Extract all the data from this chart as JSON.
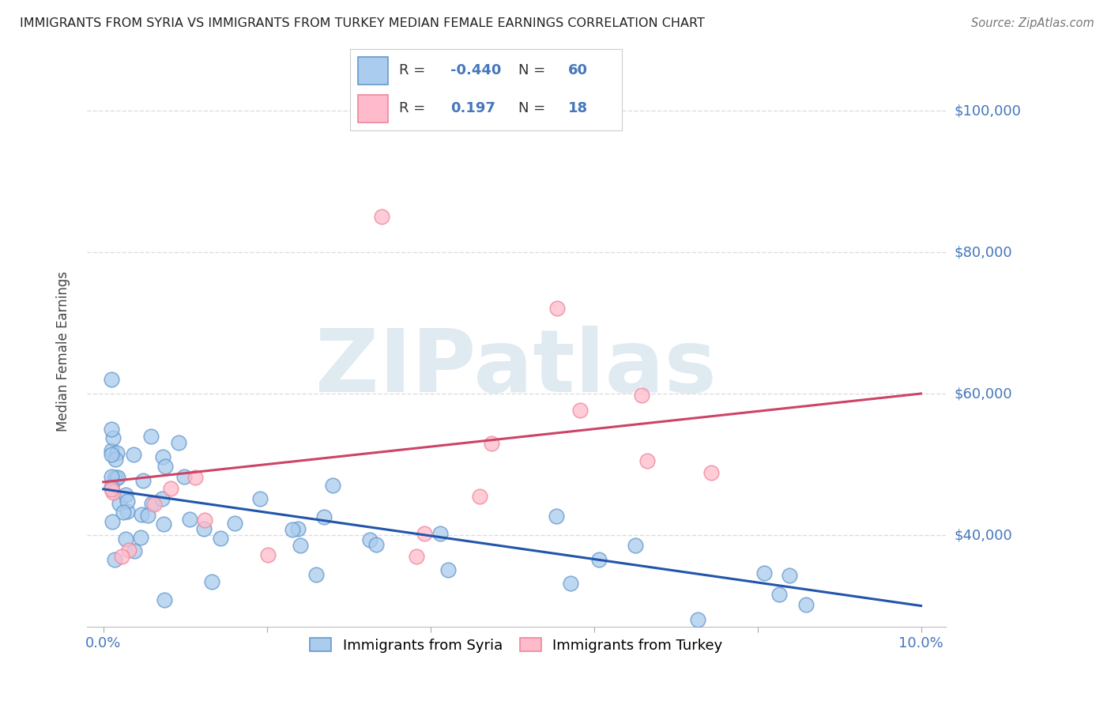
{
  "title": "IMMIGRANTS FROM SYRIA VS IMMIGRANTS FROM TURKEY MEDIAN FEMALE EARNINGS CORRELATION CHART",
  "source": "Source: ZipAtlas.com",
  "ylabel": "Median Female Earnings",
  "xlim": [
    0.0,
    0.1
  ],
  "ylim": [
    27000,
    105000
  ],
  "ytick_values": [
    40000,
    60000,
    80000,
    100000
  ],
  "ytick_labels": [
    "$40,000",
    "$60,000",
    "$80,000",
    "$100,000"
  ],
  "background_color": "#ffffff",
  "legend_R_syria": "-0.440",
  "legend_N_syria": "60",
  "legend_R_turkey": "0.197",
  "legend_N_turkey": "18",
  "syria_face_color": "#aaccee",
  "syria_edge_color": "#6699cc",
  "turkey_face_color": "#ffbbcc",
  "turkey_edge_color": "#ee8899",
  "trend_syria_color": "#2255aa",
  "trend_turkey_color": "#cc4466",
  "blue_label_color": "#4477bb",
  "title_color": "#222222",
  "source_color": "#777777",
  "grid_color": "#dddddd",
  "ylabel_color": "#444444",
  "syria_trend_y0": 46500,
  "syria_trend_y1": 30000,
  "turkey_trend_y0": 47500,
  "turkey_trend_y1": 60000
}
